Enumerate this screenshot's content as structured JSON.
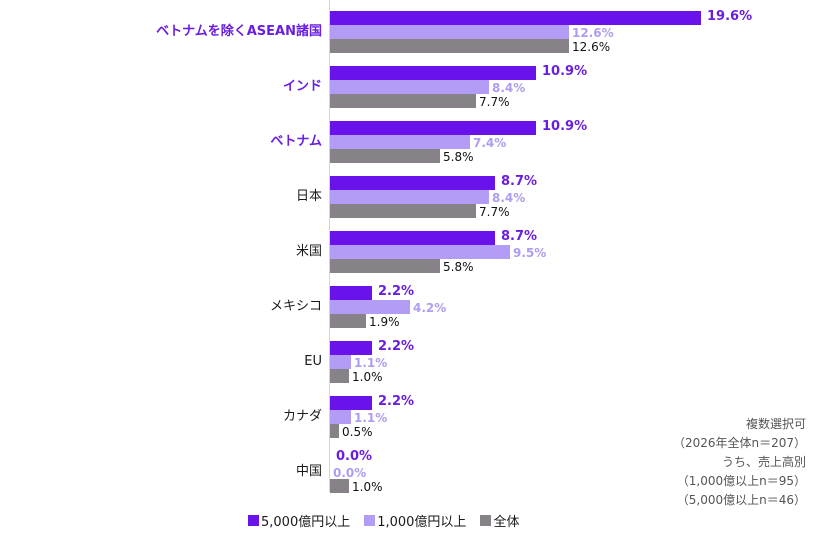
{
  "colors": {
    "series0": "#6a12ea",
    "series1": "#b39cf6",
    "series2": "#878287",
    "highlight_label": "#6a1ee0"
  },
  "chart_data": {
    "type": "bar",
    "orientation": "horizontal",
    "title": "",
    "xlabel": "",
    "ylabel": "",
    "xlim": [
      0,
      20
    ],
    "grid": false,
    "legend_position": "bottom",
    "categories": [
      "ベトナムを除くASEAN諸国",
      "インド",
      "ベトナム",
      "日本",
      "米国",
      "メキシコ",
      "EU",
      "カナダ",
      "中国"
    ],
    "highlighted_categories": [
      "ベトナムを除くASEAN諸国",
      "インド",
      "ベトナム"
    ],
    "series": [
      {
        "name": "5,000億円以上",
        "values": [
          19.6,
          10.9,
          10.9,
          8.7,
          8.7,
          2.2,
          2.2,
          2.2,
          0.0
        ]
      },
      {
        "name": "1,000億円以上",
        "values": [
          12.6,
          8.4,
          7.4,
          8.4,
          9.5,
          4.2,
          1.1,
          1.1,
          0.0
        ]
      },
      {
        "name": "全体",
        "values": [
          12.6,
          7.7,
          5.8,
          7.7,
          5.8,
          1.9,
          1.0,
          0.5,
          1.0
        ]
      }
    ],
    "value_labels": [
      [
        "19.6%",
        "10.9%",
        "10.9%",
        "8.7%",
        "8.7%",
        "2.2%",
        "2.2%",
        "2.2%",
        "0.0%"
      ],
      [
        "12.6%",
        "8.4%",
        "7.4%",
        "8.4%",
        "9.5%",
        "4.2%",
        "1.1%",
        "1.1%",
        "0.0%"
      ],
      [
        "12.6%",
        "7.7%",
        "5.8%",
        "7.7%",
        "5.8%",
        "1.9%",
        "1.0%",
        "0.5%",
        "1.0%"
      ]
    ],
    "annotations": [
      "複数選択可",
      "（2026年全体n＝207）",
      "うち、売上高別",
      "（1,000億以上n＝95）",
      "（5,000億以上n＝46）"
    ]
  },
  "legend": [
    {
      "label": "5,000億円以上"
    },
    {
      "label": "1,000億円以上"
    },
    {
      "label": "全体"
    }
  ],
  "note": {
    "line1": "複数選択可",
    "line2": "（2026年全体n＝207）",
    "line3": "うち、売上高別",
    "line4": "（1,000億以上n＝95）",
    "line5": "（5,000億以上n＝46）"
  }
}
